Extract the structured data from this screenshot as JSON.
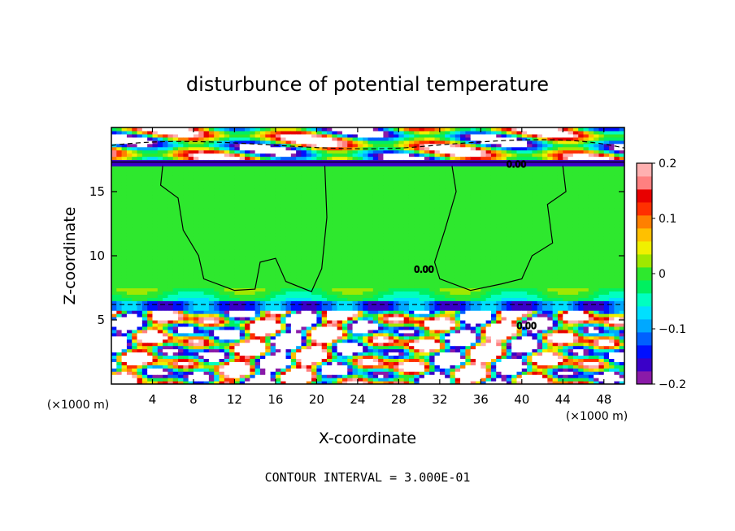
{
  "chart_data": {
    "type": "heatmap",
    "title": "disturbunce of potential temperature",
    "xlabel": "X-coordinate",
    "ylabel": "Z-coordinate",
    "x_unit": "(×1000 m)",
    "y_unit": "(×1000 m)",
    "xlim": [
      0,
      50
    ],
    "ylim": [
      0,
      20
    ],
    "x_ticks": [
      4,
      8,
      12,
      16,
      20,
      24,
      28,
      32,
      36,
      40,
      44,
      48
    ],
    "y_ticks": [
      5,
      10,
      15
    ],
    "colorbar": {
      "range": [
        -0.2,
        0.2
      ],
      "tick_values": [
        0.2,
        0.1,
        0,
        -0.1,
        -0.2
      ],
      "tick_labels": [
        "0.2",
        "0.1",
        "0",
        "−0.1",
        "−0.2"
      ],
      "colors": [
        "#8a1aa8",
        "#3a00c8",
        "#0010ff",
        "#0060ff",
        "#00a8ff",
        "#00e0ff",
        "#00ffc0",
        "#00f060",
        "#2ee82e",
        "#a0e800",
        "#f0f000",
        "#ffc000",
        "#ff8000",
        "#ff3000",
        "#e80000",
        "#ff8080",
        "#ffb0b0"
      ]
    },
    "field_summary": [
      {
        "region": "z 0–6 km (lower troposphere)",
        "pattern": "strong alternating positive/negative disturbances"
      },
      {
        "region": "z 6–17 km (mid/upper troposphere)",
        "pattern": "near zero, uniform"
      },
      {
        "region": "z 17–20 km (stratosphere)",
        "pattern": "banded positive/negative disturbances"
      }
    ],
    "contour_label": "0.00",
    "footnote": "CONTOUR INTERVAL = 3.000E-01"
  }
}
